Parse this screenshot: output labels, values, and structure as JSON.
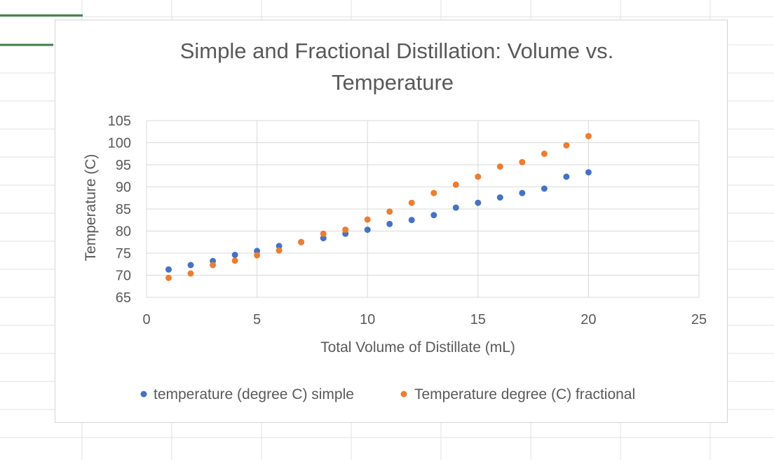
{
  "colors": {
    "simple": "#4472C4",
    "fractional": "#ED7D31",
    "sheet_gridline": "#e1e1e1",
    "selection": "#3e7e48"
  },
  "chart_data": {
    "type": "scatter",
    "title_lines": [
      "Simple and Fractional Distillation: Volume vs.",
      "Temperature"
    ],
    "xlabel": "Total Volume of Distillate (mL)",
    "ylabel": "Temperature (C)",
    "xlim": [
      0,
      25
    ],
    "ylim": [
      65,
      105
    ],
    "xticks": [
      0,
      5,
      10,
      15,
      20,
      25
    ],
    "yticks": [
      65,
      70,
      75,
      80,
      85,
      90,
      95,
      100,
      105
    ],
    "grid": true,
    "legend_position": "bottom",
    "series": [
      {
        "name": "temperature (degree C) simple",
        "x": [
          1,
          2,
          3,
          4,
          5,
          6,
          7,
          8,
          9,
          10,
          11,
          12,
          13,
          14,
          15,
          16,
          17,
          18,
          19,
          20
        ],
        "y": [
          71.3,
          72.3,
          73.2,
          74.6,
          75.5,
          76.6,
          77.5,
          78.4,
          79.4,
          80.3,
          81.6,
          82.5,
          83.6,
          85.3,
          86.4,
          87.6,
          88.6,
          89.6,
          92.3,
          93.3
        ]
      },
      {
        "name": "Temperature degree (C) fractional",
        "x": [
          1,
          2,
          3,
          4,
          5,
          6,
          7,
          8,
          9,
          10,
          11,
          12,
          13,
          14,
          15,
          16,
          17,
          18,
          19,
          20
        ],
        "y": [
          69.4,
          70.4,
          72.3,
          73.3,
          74.5,
          75.6,
          77.5,
          79.4,
          80.3,
          82.6,
          84.4,
          86.4,
          88.6,
          90.5,
          92.3,
          94.6,
          95.6,
          97.5,
          99.4,
          101.5
        ]
      }
    ]
  }
}
